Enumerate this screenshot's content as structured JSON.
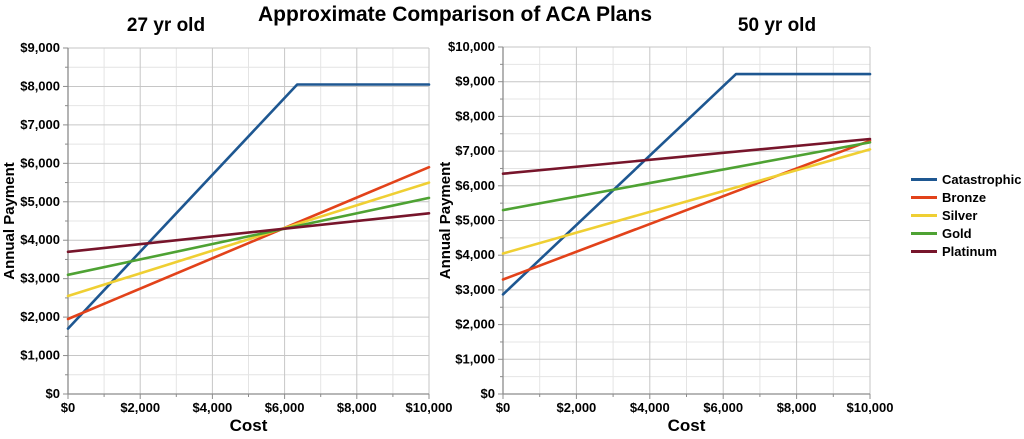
{
  "title": "Approximate Comparison of ACA Plans",
  "legend": {
    "position": "right",
    "items": [
      {
        "label": "Catastrophic",
        "color": "#1E5791"
      },
      {
        "label": "Bronze",
        "color": "#E2421A"
      },
      {
        "label": "Silver",
        "color": "#EFCF33"
      },
      {
        "label": "Gold",
        "color": "#4EA233"
      },
      {
        "label": "Platinum",
        "color": "#77152B"
      }
    ]
  },
  "chart_data": [
    {
      "type": "line",
      "title": "27 yr old",
      "xlabel": "Cost",
      "ylabel": "Annual Payment",
      "xlim": [
        0,
        10000
      ],
      "ylim": [
        0,
        9000
      ],
      "x_major_step": 2000,
      "x_minor_step": 1000,
      "y_major_step": 1000,
      "y_minor_step": 500,
      "grid": true,
      "x_tick_labels": [
        "$0",
        "$2,000",
        "$4,000",
        "$6,000",
        "$8,000",
        "$10,000"
      ],
      "y_tick_labels": [
        "$0",
        "$1,000",
        "$2,000",
        "$3,000",
        "$4,000",
        "$5,000",
        "$6,000",
        "$7,000",
        "$8,000",
        "$9,000"
      ],
      "series": [
        {
          "name": "Catastrophic",
          "color": "#1E5791",
          "points": [
            [
              0,
              1700
            ],
            [
              6350,
              8050
            ],
            [
              10000,
              8050
            ]
          ]
        },
        {
          "name": "Bronze",
          "color": "#E2421A",
          "points": [
            [
              0,
              1950
            ],
            [
              10000,
              5900
            ]
          ]
        },
        {
          "name": "Silver",
          "color": "#EFCF33",
          "points": [
            [
              0,
              2550
            ],
            [
              10000,
              5500
            ]
          ]
        },
        {
          "name": "Gold",
          "color": "#4EA233",
          "points": [
            [
              0,
              3100
            ],
            [
              10000,
              5100
            ]
          ]
        },
        {
          "name": "Platinum",
          "color": "#77152B",
          "points": [
            [
              0,
              3700
            ],
            [
              10000,
              4700
            ]
          ]
        }
      ]
    },
    {
      "type": "line",
      "title": "50 yr old",
      "xlabel": "Cost",
      "ylabel": "Annual Payment",
      "xlim": [
        0,
        10000
      ],
      "ylim": [
        0,
        10000
      ],
      "x_major_step": 2000,
      "x_minor_step": 1000,
      "y_major_step": 1000,
      "y_minor_step": 500,
      "grid": true,
      "x_tick_labels": [
        "$0",
        "$2,000",
        "$4,000",
        "$6,000",
        "$8,000",
        "$10,000"
      ],
      "y_tick_labels": [
        "$0",
        "$1,000",
        "$2,000",
        "$3,000",
        "$4,000",
        "$5,000",
        "$6,000",
        "$7,000",
        "$8,000",
        "$9,000",
        "$10,000"
      ],
      "series": [
        {
          "name": "Catastrophic",
          "color": "#1E5791",
          "points": [
            [
              0,
              2870
            ],
            [
              6350,
              9220
            ],
            [
              10000,
              9220
            ]
          ]
        },
        {
          "name": "Bronze",
          "color": "#E2421A",
          "points": [
            [
              0,
              3300
            ],
            [
              10000,
              7300
            ]
          ]
        },
        {
          "name": "Silver",
          "color": "#EFCF33",
          "points": [
            [
              0,
              4050
            ],
            [
              10000,
              7050
            ]
          ]
        },
        {
          "name": "Gold",
          "color": "#4EA233",
          "points": [
            [
              0,
              5300
            ],
            [
              10000,
              7250
            ]
          ]
        },
        {
          "name": "Platinum",
          "color": "#77152B",
          "points": [
            [
              0,
              6350
            ],
            [
              10000,
              7350
            ]
          ]
        }
      ]
    }
  ]
}
